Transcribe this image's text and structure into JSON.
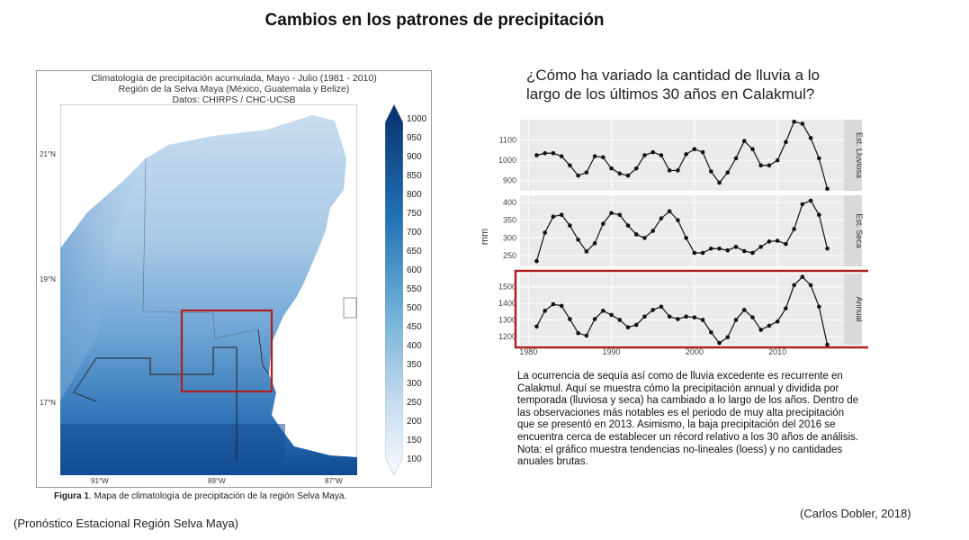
{
  "slide": {
    "title": "Cambios en los patrones de precipitación",
    "source_left": "(Pronóstico Estacional Región Selva Maya)",
    "citation": "(Carlos Dobler, 2018)"
  },
  "map": {
    "title_lines": [
      "Climatología de precipitación acumulada, Mayo - Julio (1981 - 2010)",
      "Región de la Selva Maya (México, Guatemala y Belize)",
      "Datos: CHIRPS / CHC-UCSB"
    ],
    "lat_labels": [
      "21°N",
      "19°N",
      "17°N"
    ],
    "lon_labels": [
      "91°W",
      "89°W",
      "87°W"
    ],
    "colorbar_ticks": [
      "1000",
      "950",
      "900",
      "850",
      "800",
      "750",
      "700",
      "650",
      "600",
      "550",
      "500",
      "450",
      "400",
      "350",
      "300",
      "250",
      "200",
      "150",
      "100"
    ],
    "caption_bold": "Figura 1",
    "caption_text": ".  Mapa de climatología de precipitación de la región Selva Maya.",
    "colors": {
      "dark": "#0b3f7e",
      "mid": "#5d9bd0",
      "light": "#d8e7f4",
      "highlight_box": "#b01e1e"
    }
  },
  "chart_question": "¿Cómo ha variado la cantidad de lluvia a lo largo de los últimos 30 años en Calakmul?",
  "chart_data": {
    "type": "line",
    "ylabel": "mm",
    "x_ticks": [
      1980,
      1990,
      2000,
      2010
    ],
    "x_range": [
      1979,
      2018
    ],
    "panels": [
      {
        "name": "Est. Lluviosa",
        "ylim": [
          850,
          1200
        ],
        "y_ticks": [
          900,
          1000,
          1100
        ],
        "x": [
          1981,
          1982,
          1983,
          1984,
          1985,
          1986,
          1987,
          1988,
          1989,
          1990,
          1991,
          1992,
          1993,
          1994,
          1995,
          1996,
          1997,
          1998,
          1999,
          2000,
          2001,
          2002,
          2003,
          2004,
          2005,
          2006,
          2007,
          2008,
          2009,
          2010,
          2011,
          2012,
          2013,
          2014,
          2015,
          2016
        ],
        "values": [
          1025,
          1035,
          1035,
          1020,
          975,
          925,
          940,
          1020,
          1015,
          960,
          935,
          925,
          960,
          1025,
          1040,
          1025,
          950,
          950,
          1030,
          1055,
          1040,
          945,
          890,
          940,
          1010,
          1095,
          1055,
          975,
          975,
          1000,
          1090,
          1190,
          1180,
          1110,
          1010,
          860
        ]
      },
      {
        "name": "Est. Seca",
        "ylim": [
          220,
          420
        ],
        "y_ticks": [
          250,
          300,
          350,
          400
        ],
        "x": [
          1981,
          1982,
          1983,
          1984,
          1985,
          1986,
          1987,
          1988,
          1989,
          1990,
          1991,
          1992,
          1993,
          1994,
          1995,
          1996,
          1997,
          1998,
          1999,
          2000,
          2001,
          2002,
          2003,
          2004,
          2005,
          2006,
          2007,
          2008,
          2009,
          2010,
          2011,
          2012,
          2013,
          2014,
          2015,
          2016
        ],
        "values": [
          235,
          315,
          360,
          365,
          335,
          295,
          262,
          285,
          340,
          370,
          365,
          335,
          310,
          300,
          320,
          355,
          375,
          350,
          300,
          258,
          258,
          270,
          270,
          265,
          275,
          263,
          258,
          275,
          290,
          292,
          283,
          325,
          395,
          405,
          365,
          270
        ]
      },
      {
        "name": "Annual",
        "ylim": [
          1150,
          1580
        ],
        "y_ticks": [
          1200,
          1300,
          1400,
          1500
        ],
        "x": [
          1981,
          1982,
          1983,
          1984,
          1985,
          1986,
          1987,
          1988,
          1989,
          1990,
          1991,
          1992,
          1993,
          1994,
          1995,
          1996,
          1997,
          1998,
          1999,
          2000,
          2001,
          2002,
          2003,
          2004,
          2005,
          2006,
          2007,
          2008,
          2009,
          2010,
          2011,
          2012,
          2013,
          2014,
          2015,
          2016
        ],
        "values": [
          1260,
          1355,
          1395,
          1385,
          1305,
          1220,
          1205,
          1305,
          1355,
          1330,
          1300,
          1255,
          1270,
          1320,
          1360,
          1380,
          1320,
          1305,
          1320,
          1315,
          1300,
          1225,
          1160,
          1195,
          1300,
          1360,
          1315,
          1240,
          1265,
          1290,
          1370,
          1510,
          1560,
          1510,
          1380,
          1150
        ],
        "highlighted": true
      }
    ]
  },
  "chart_description": "La ocurrencia de sequía así como de lluvia excedente es recurrente en Calakmul. Aquí se muestra cómo la precipitación annual y dividida por temporada (lluviosa y seca) ha cambiado a lo largo de los años. Dentro de las observaciones más notables es el periodo de muy alta precipitación que se presentó en 2013. Asimismo, la baja precipitación del 2016 se encuentra cerca de establecer un récord relativo a los 30 años de análisis. Nota: el gráfico muestra tendencias no-lineales (loess) y no cantidades anuales brutas."
}
